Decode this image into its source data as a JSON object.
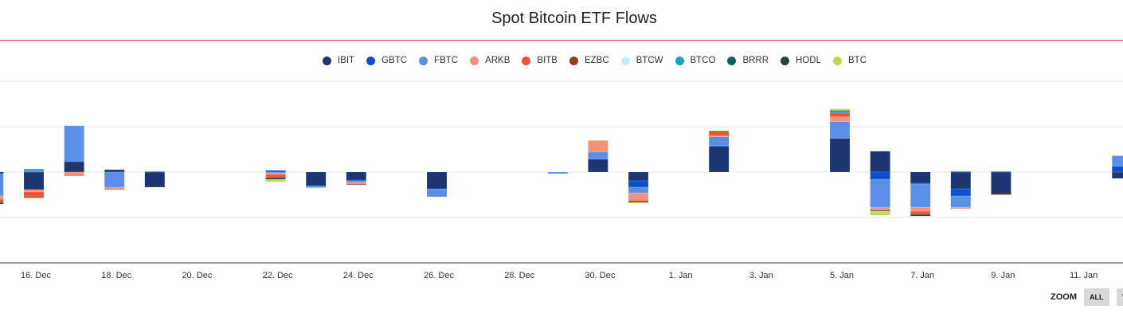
{
  "chart_data": {
    "type": "bar",
    "stacked": true,
    "title": "Spot Bitcoin ETF Flows",
    "xlabel": "",
    "ylabel": "",
    "ylim": [
      -1000,
      1000
    ],
    "y_gridlines": [
      -1000,
      -500,
      0,
      500,
      1000
    ],
    "grid": true,
    "legend_position": "top",
    "categories": [
      "15 Dec",
      "16 Dec",
      "17 Dec",
      "18 Dec",
      "19 Dec",
      "22 Dec",
      "23 Dec",
      "24 Dec",
      "26 Dec",
      "29 Dec",
      "30 Dec",
      "31 Dec",
      "2 Jan",
      "5 Jan",
      "6 Jan",
      "7 Jan",
      "8 Jan",
      "9 Jan",
      "12 Jan"
    ],
    "x_tick_labels": [
      "16. Dec",
      "18. Dec",
      "20. Dec",
      "22. Dec",
      "24. Dec",
      "26. Dec",
      "28. Dec",
      "30. Dec",
      "1. Jan",
      "3. Jan",
      "5. Jan",
      "7. Jan",
      "9. Jan",
      "11. Jan"
    ],
    "series": [
      {
        "name": "IBIT",
        "color": "#1b3670",
        "values": [
          -18,
          -193,
          114,
          26,
          -167,
          0,
          -150,
          -88,
          -185,
          0,
          141,
          -97,
          282,
          370,
          229,
          -123,
          -185,
          -246,
          -70
        ]
      },
      {
        "name": "GBTC",
        "color": "#0b4fcf",
        "values": [
          0,
          0,
          0,
          0,
          0,
          18,
          -9,
          -9,
          0,
          0,
          0,
          -70,
          9,
          0,
          -79,
          -9,
          -79,
          0,
          62
        ]
      },
      {
        "name": "FBTC",
        "color": "#5b8ee8",
        "values": [
          -246,
          35,
          396,
          -167,
          9,
          -9,
          -9,
          -18,
          -88,
          -18,
          79,
          -62,
          97,
          185,
          -308,
          -255,
          -123,
          9,
          114
        ]
      },
      {
        "name": "ARKB",
        "color": "#f4917c",
        "values": [
          -35,
          -26,
          -44,
          -18,
          0,
          -18,
          -9,
          -18,
          0,
          0,
          123,
          -88,
          9,
          53,
          -35,
          -44,
          -18,
          -9,
          0
        ]
      },
      {
        "name": "BITB",
        "color": "#ef5535",
        "values": [
          -35,
          -53,
          0,
          -9,
          0,
          -35,
          0,
          0,
          0,
          0,
          0,
          0,
          35,
          35,
          0,
          -35,
          9,
          0,
          0
        ]
      },
      {
        "name": "EZBC",
        "color": "#a13a22",
        "values": [
          0,
          0,
          0,
          0,
          0,
          0,
          0,
          -9,
          0,
          0,
          0,
          -18,
          18,
          9,
          0,
          0,
          0,
          0,
          0
        ]
      },
      {
        "name": "BTCW",
        "color": "#bfeef8",
        "values": [
          0,
          0,
          0,
          0,
          0,
          0,
          0,
          0,
          0,
          0,
          0,
          0,
          0,
          0,
          0,
          0,
          0,
          0,
          0
        ]
      },
      {
        "name": "BTCO",
        "color": "#16a6c0",
        "values": [
          0,
          0,
          0,
          0,
          0,
          0,
          0,
          0,
          0,
          0,
          0,
          0,
          0,
          18,
          0,
          0,
          0,
          0,
          0
        ]
      },
      {
        "name": "BRRR",
        "color": "#0b5f66",
        "values": [
          -18,
          0,
          0,
          0,
          0,
          0,
          0,
          0,
          0,
          0,
          0,
          0,
          0,
          9,
          0,
          0,
          0,
          0,
          0
        ]
      },
      {
        "name": "HODL",
        "color": "#22423f",
        "values": [
          0,
          -9,
          0,
          0,
          0,
          -18,
          0,
          0,
          0,
          0,
          0,
          0,
          0,
          0,
          -9,
          -18,
          0,
          0,
          0
        ]
      },
      {
        "name": "BTC",
        "color": "#c3d65a",
        "values": [
          0,
          -9,
          0,
          0,
          0,
          -26,
          0,
          0,
          0,
          0,
          9,
          -9,
          9,
          18,
          -44,
          0,
          0,
          0,
          9
        ]
      }
    ]
  },
  "range_selector": {
    "label": "ZOOM",
    "buttons": [
      "ALL",
      "YTD"
    ]
  }
}
